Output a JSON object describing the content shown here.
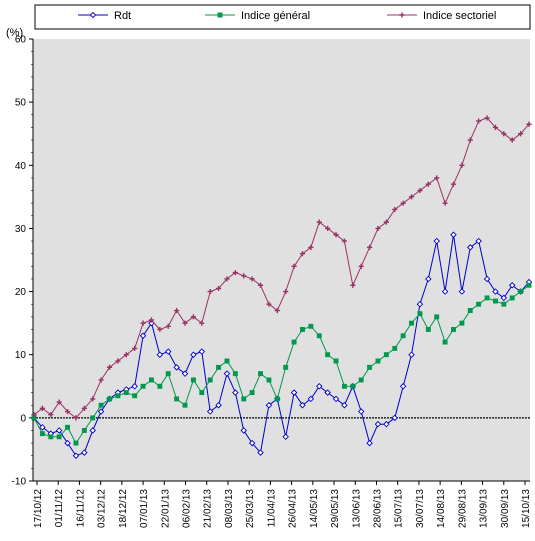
{
  "chart_data": {
    "type": "line",
    "ylabel": "(%)",
    "ylim": [
      -10,
      60
    ],
    "yticks": [
      "-10",
      "0",
      "10",
      "20",
      "30",
      "40",
      "50",
      "60"
    ],
    "xticks": [
      "17/10/12",
      "01/11/12",
      "16/11/12",
      "03/12/12",
      "18/12/12",
      "07/01/13",
      "22/01/13",
      "06/02/13",
      "21/02/13",
      "08/03/13",
      "25/03/13",
      "11/04/13",
      "26/04/13",
      "14/05/13",
      "29/05/13",
      "13/06/13",
      "28/06/13",
      "15/07/13",
      "30/07/13",
      "14/08/13",
      "29/08/13",
      "13/09/13",
      "30/09/13",
      "15/10/13"
    ],
    "legend_position": "top",
    "grid": false,
    "background": "#e0e0e0",
    "series": [
      {
        "name": "Rdt",
        "color": "#0000cc",
        "marker": "diamond-open",
        "values": [
          0,
          -1.5,
          -2.5,
          -2,
          -4,
          -6,
          -5.5,
          -2,
          1,
          3,
          4,
          4.5,
          5,
          13,
          15,
          10,
          10.5,
          8,
          7,
          10,
          10.5,
          1,
          2,
          7,
          4,
          -2,
          -4,
          -5.5,
          2,
          3,
          -3,
          4,
          2,
          3,
          5,
          4,
          3,
          2,
          5,
          1,
          -4,
          -1,
          -1,
          0,
          5,
          10,
          18,
          22,
          28,
          20,
          29,
          20,
          27,
          28,
          22,
          20,
          19,
          21,
          20,
          21.5
        ]
      },
      {
        "name": "Indice général",
        "color": "#00994d",
        "marker": "square",
        "values": [
          0,
          -2.5,
          -3,
          -3,
          -1.5,
          -4,
          -2,
          0,
          2,
          3,
          3.5,
          4,
          3.5,
          5,
          6,
          5,
          7,
          3,
          2,
          6,
          4,
          6,
          8,
          9,
          7,
          3,
          4,
          7,
          6,
          3,
          8,
          12,
          14,
          14.5,
          13,
          10,
          9,
          5,
          5,
          6,
          8,
          9,
          10,
          11,
          13,
          15,
          16.5,
          14,
          16,
          12,
          14,
          15,
          17,
          18,
          19,
          18.5,
          18,
          19,
          20,
          21
        ]
      },
      {
        "name": "Indice sectoriel",
        "color": "#993366",
        "marker": "plus",
        "values": [
          0.5,
          1.5,
          0.5,
          2.5,
          1,
          0,
          1.5,
          3,
          6,
          8,
          9,
          10,
          11,
          15,
          15.5,
          14,
          14.5,
          17,
          15,
          16,
          15,
          20,
          20.5,
          22,
          23,
          22.5,
          22,
          21,
          18,
          17,
          20,
          24,
          26,
          27,
          31,
          30,
          29,
          28,
          21,
          24,
          27,
          30,
          31,
          33,
          34,
          35,
          36,
          37,
          38,
          34,
          37,
          40,
          44,
          47,
          47.5,
          46,
          45,
          44,
          45,
          46.5
        ]
      }
    ]
  }
}
